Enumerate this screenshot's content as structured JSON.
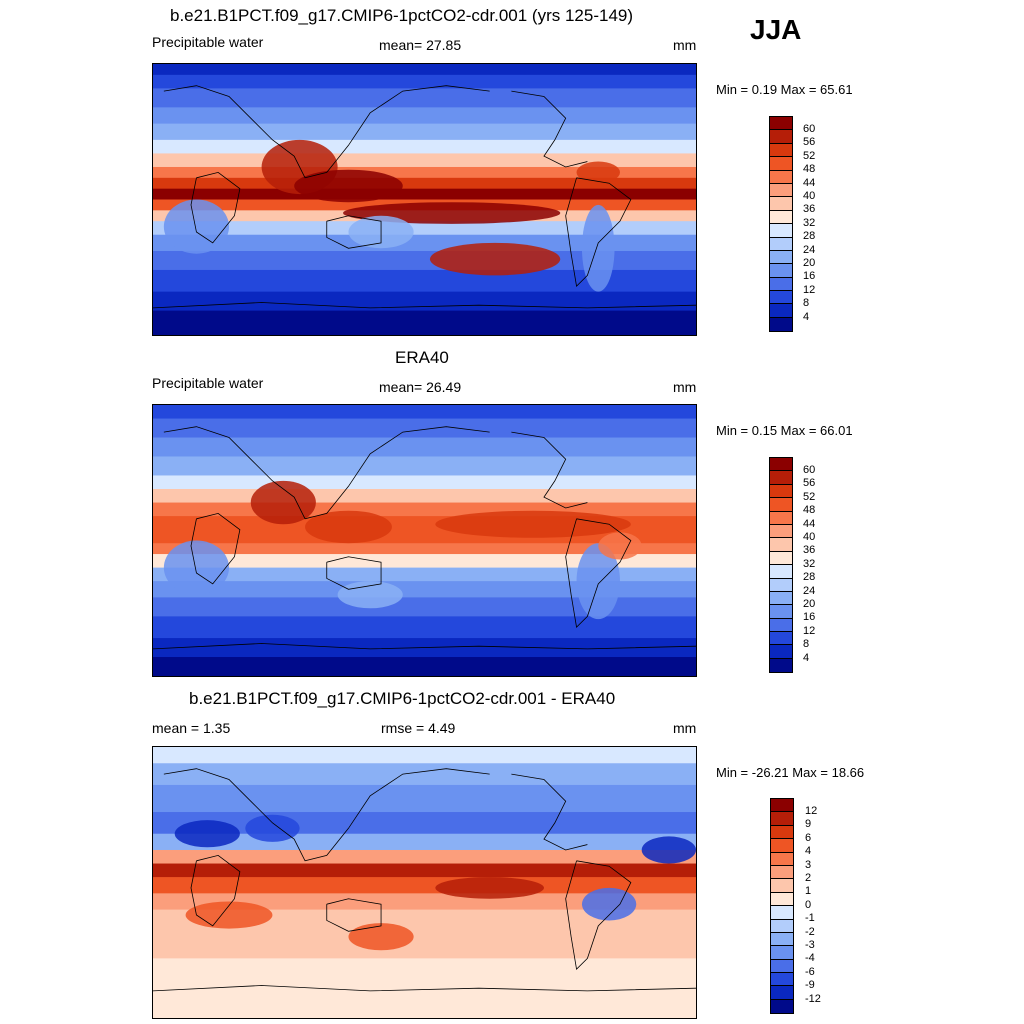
{
  "season": "JJA",
  "panels": [
    {
      "title": "b.e21.B1PCT.f09_g17.CMIP6-1pctCO2-cdr.001 (yrs 125-149)",
      "left_label": "Precipitable water",
      "center_label": "mean=  27.85",
      "units": "mm",
      "minmax": "Min =   0.19 Max =  65.61",
      "colorbar": {
        "labels": [
          "60",
          "56",
          "52",
          "48",
          "44",
          "40",
          "36",
          "32",
          "28",
          "24",
          "20",
          "16",
          "12",
          "8",
          "4"
        ],
        "colors": [
          "#8b0000",
          "#b51e08",
          "#d8390e",
          "#ee5524",
          "#f7764a",
          "#fb9e7c",
          "#fdc6ac",
          "#ffe8d8",
          "#d8e8ff",
          "#b2cdfb",
          "#8ab0f5",
          "#6a92f0",
          "#4a6ee8",
          "#2448dc",
          "#0a28c0",
          "#000a8a"
        ]
      },
      "field": "pw_model"
    },
    {
      "title": "ERA40",
      "left_label": "Precipitable water",
      "center_label": "mean=  26.49",
      "units": "mm",
      "minmax": "Min =   0.15 Max =  66.01",
      "colorbar": {
        "labels": [
          "60",
          "56",
          "52",
          "48",
          "44",
          "40",
          "36",
          "32",
          "28",
          "24",
          "20",
          "16",
          "12",
          "8",
          "4"
        ],
        "colors": [
          "#8b0000",
          "#b51e08",
          "#d8390e",
          "#ee5524",
          "#f7764a",
          "#fb9e7c",
          "#fdc6ac",
          "#ffe8d8",
          "#d8e8ff",
          "#b2cdfb",
          "#8ab0f5",
          "#6a92f0",
          "#4a6ee8",
          "#2448dc",
          "#0a28c0",
          "#000a8a"
        ]
      },
      "field": "pw_obs"
    },
    {
      "title": "b.e21.B1PCT.f09_g17.CMIP6-1pctCO2-cdr.001 - ERA40",
      "left_label": "mean =   1.35",
      "center_label": "rmse =   4.49",
      "units": "mm",
      "minmax": "Min = -26.21 Max =  18.66",
      "colorbar": {
        "labels": [
          "12",
          "9",
          "6",
          "4",
          "3",
          "2",
          "1",
          "0",
          "-1",
          "-2",
          "-3",
          "-4",
          "-6",
          "-9",
          "-12"
        ],
        "colors": [
          "#8b0000",
          "#b51e08",
          "#d8390e",
          "#ee5524",
          "#f7764a",
          "#fb9e7c",
          "#fdc6ac",
          "#ffe8d8",
          "#d8e8ff",
          "#b2cdfb",
          "#8ab0f5",
          "#6a92f0",
          "#4a6ee8",
          "#2448dc",
          "#0a28c0",
          "#000a8a"
        ]
      },
      "field": "pw_diff"
    }
  ]
}
